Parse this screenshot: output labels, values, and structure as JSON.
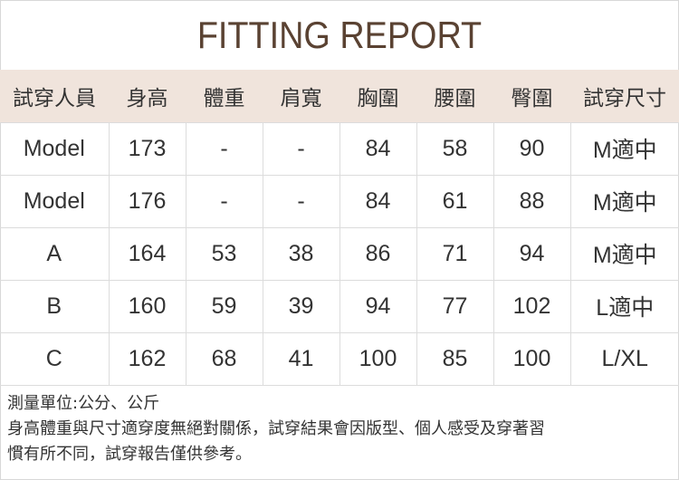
{
  "title": "FITTING REPORT",
  "headers": [
    "試穿人員",
    "身高",
    "體重",
    "肩寬",
    "胸圍",
    "腰圍",
    "臀圍",
    "試穿尺寸"
  ],
  "rows": [
    [
      "Model",
      "173",
      "-",
      "-",
      "84",
      "58",
      "90",
      "M適中"
    ],
    [
      "Model",
      "176",
      "-",
      "-",
      "84",
      "61",
      "88",
      "M適中"
    ],
    [
      "A",
      "164",
      "53",
      "38",
      "86",
      "71",
      "94",
      "M適中"
    ],
    [
      "B",
      "160",
      "59",
      "39",
      "94",
      "77",
      "102",
      "L適中"
    ],
    [
      "C",
      "162",
      "68",
      "41",
      "100",
      "85",
      "100",
      "L/XL"
    ]
  ],
  "notes": [
    "測量單位:公分、公斤",
    "身高體重與尺寸適穿度無絕對關係，試穿結果會因版型、個人感受及穿著習",
    "慣有所不同，試穿報告僅供參考。"
  ],
  "colors": {
    "title": "#5a4232",
    "header_bg": "#f0e4dc"
  }
}
